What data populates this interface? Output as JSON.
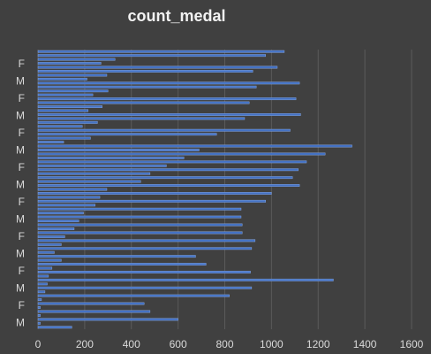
{
  "chart_data": {
    "type": "bar",
    "orientation": "horizontal",
    "title": "count_medal",
    "xlabel": "",
    "ylabel": "",
    "xlim": [
      0,
      1600
    ],
    "xticks": [
      0,
      200,
      400,
      600,
      800,
      1000,
      1200,
      1400,
      1600
    ],
    "grid": "vertical",
    "legend": "none",
    "categories_visible": [
      "M",
      "F",
      "M",
      "F",
      "M",
      "F",
      "M",
      "F",
      "M",
      "F",
      "M",
      "F",
      "M",
      "F",
      "M",
      "F"
    ],
    "values": [
      1055,
      975,
      330,
      270,
      1025,
      920,
      295,
      210,
      1120,
      935,
      300,
      235,
      1105,
      905,
      275,
      215,
      1125,
      885,
      255,
      190,
      1080,
      765,
      225,
      110,
      1345,
      690,
      1230,
      625,
      1150,
      550,
      1115,
      480,
      1090,
      440,
      1120,
      295,
      1000,
      265,
      975,
      245,
      870,
      195,
      870,
      175,
      875,
      155,
      875,
      115,
      930,
      100,
      915,
      70,
      675,
      100,
      720,
      60,
      910,
      45,
      1265,
      40,
      915,
      30,
      820,
      15,
      455,
      10,
      480,
      10,
      600,
      10,
      145
    ],
    "colors": {
      "background": "#404040",
      "bar": "#4472c4",
      "bar_border": "#8fb0ea",
      "grid": "#5a5a5a",
      "text": "#d9d9d9",
      "title": "#f2f2f2"
    }
  }
}
